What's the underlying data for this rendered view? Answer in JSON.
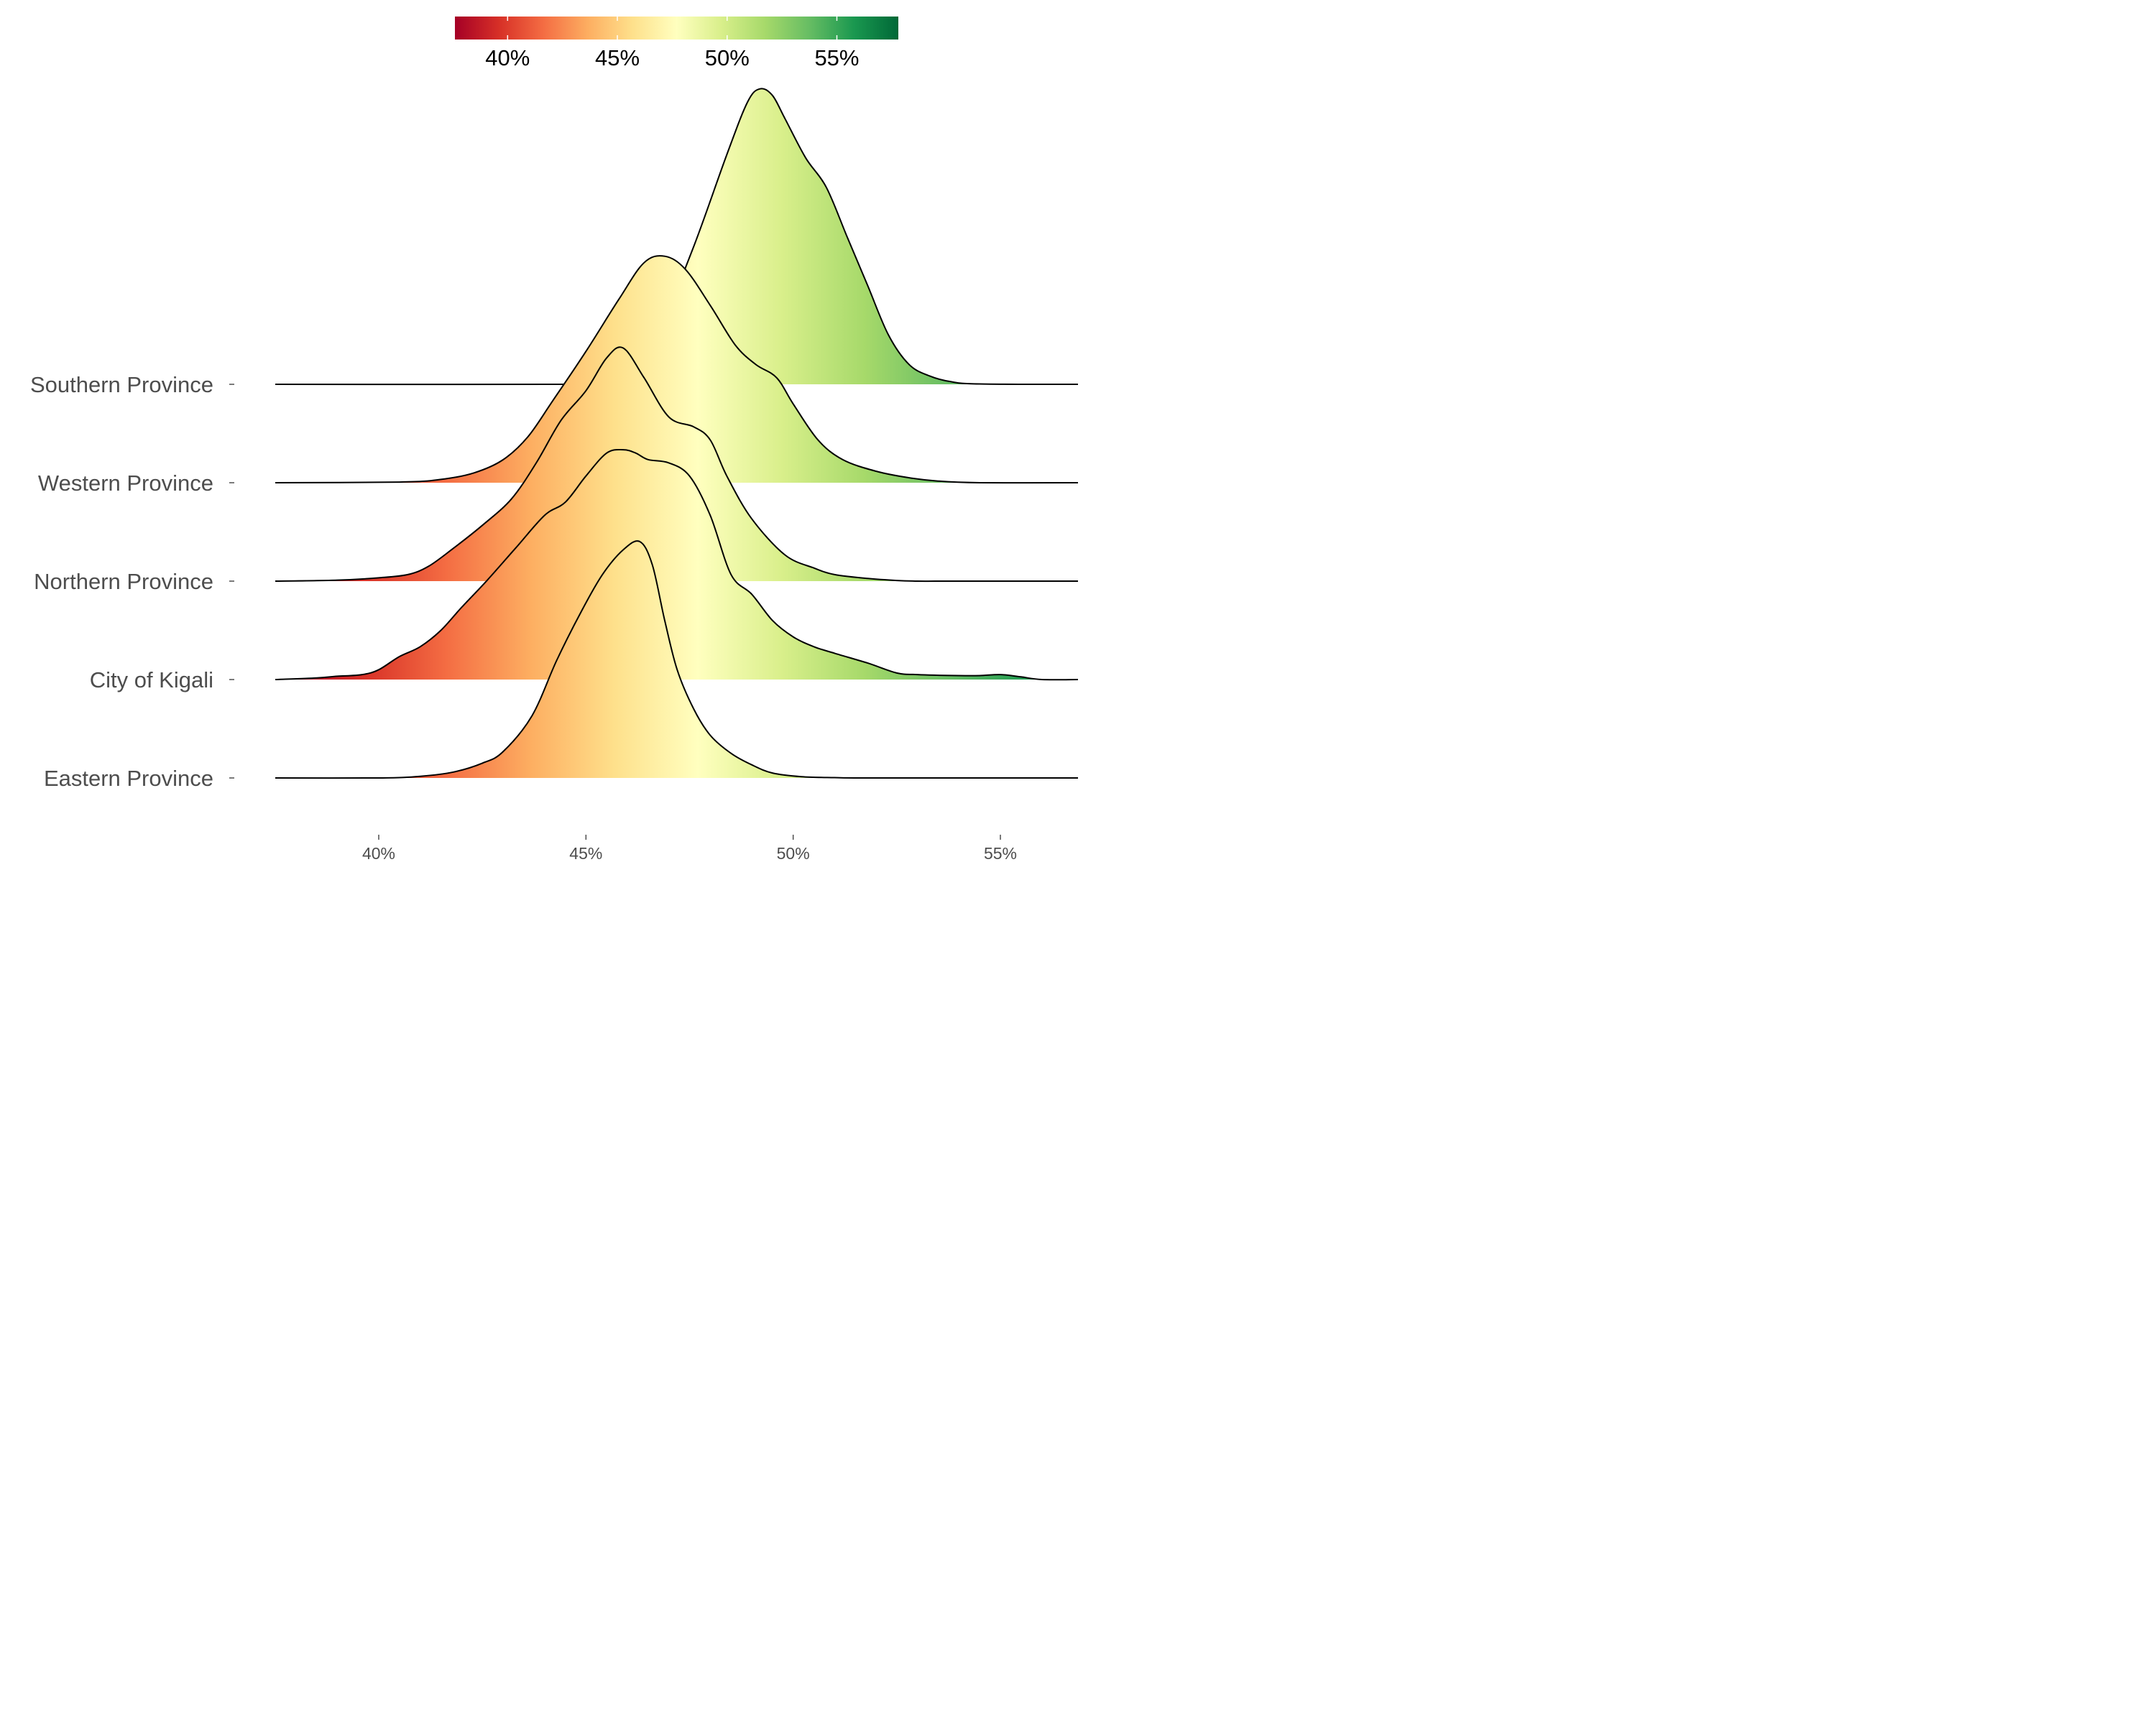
{
  "chart_data": {
    "type": "ridgeline",
    "title": "",
    "xlabel": "",
    "ylabel": "",
    "x_ticks": [
      40,
      45,
      50,
      55
    ],
    "x_tick_labels": [
      "40%",
      "45%",
      "50%",
      "55%"
    ],
    "xlim": [
      37.5,
      57.0
    ],
    "y_categories": [
      "Southern Province",
      "Western Province",
      "Northern Province",
      "City of Kigali",
      "Eastern Province"
    ],
    "fill_mode": "gradient-by-x",
    "grid": false,
    "colorbar": {
      "position": "top",
      "range": [
        37.6,
        57.8
      ],
      "ticks": [
        40,
        45,
        50,
        55
      ],
      "tick_labels": [
        "40%",
        "45%",
        "50%",
        "55%"
      ],
      "palette": [
        "#a50026",
        "#d73027",
        "#f46d43",
        "#fdae61",
        "#fee08b",
        "#ffffbf",
        "#d9ef8b",
        "#a6d96a",
        "#66bd63",
        "#1a9850",
        "#006837"
      ]
    },
    "series": [
      {
        "name": "Eastern Province",
        "x": [
          37.5,
          40.0,
          41.0,
          41.8,
          42.5,
          43.0,
          43.7,
          44.3,
          44.9,
          45.4,
          45.9,
          46.3,
          46.6,
          46.9,
          47.2,
          47.6,
          48.0,
          48.5,
          49.0,
          49.5,
          50.2,
          51.0,
          52.0,
          57.0
        ],
        "y": [
          0.0,
          0.0,
          0.05,
          0.18,
          0.45,
          0.8,
          1.9,
          3.6,
          5.1,
          6.2,
          6.95,
          7.2,
          6.5,
          4.8,
          3.3,
          2.1,
          1.3,
          0.75,
          0.4,
          0.15,
          0.04,
          0.01,
          0.0,
          0.0
        ]
      },
      {
        "name": "City of Kigali",
        "x": [
          37.5,
          38.5,
          39.0,
          39.6,
          40.0,
          40.5,
          41.0,
          41.5,
          42.0,
          42.6,
          43.3,
          44.0,
          44.5,
          45.0,
          45.5,
          45.9,
          46.2,
          46.5,
          47.0,
          47.5,
          48.0,
          48.5,
          49.0,
          49.5,
          50.0,
          50.5,
          51.0,
          51.8,
          52.5,
          53.0,
          54.0,
          54.5,
          55.0,
          55.5,
          56.0,
          57.0
        ],
        "y": [
          0.0,
          0.05,
          0.1,
          0.15,
          0.3,
          0.7,
          1.0,
          1.5,
          2.2,
          3.0,
          4.0,
          5.0,
          5.4,
          6.2,
          6.9,
          7.0,
          6.9,
          6.7,
          6.6,
          6.2,
          5.0,
          3.2,
          2.6,
          1.8,
          1.3,
          1.0,
          0.8,
          0.5,
          0.2,
          0.15,
          0.12,
          0.12,
          0.15,
          0.08,
          0.0,
          0.0
        ]
      },
      {
        "name": "Northern Province",
        "x": [
          37.5,
          39.0,
          40.0,
          40.7,
          41.2,
          41.8,
          42.5,
          43.2,
          43.8,
          44.4,
          45.0,
          45.5,
          45.9,
          46.4,
          47.0,
          47.6,
          48.0,
          48.4,
          49.0,
          49.8,
          50.5,
          51.0,
          51.8,
          52.5,
          53.0,
          54.0,
          57.0
        ],
        "y": [
          0.0,
          0.03,
          0.1,
          0.2,
          0.45,
          1.0,
          1.7,
          2.5,
          3.6,
          4.9,
          5.8,
          6.8,
          7.1,
          6.2,
          5.0,
          4.7,
          4.3,
          3.2,
          1.9,
          0.8,
          0.4,
          0.2,
          0.08,
          0.02,
          0.0,
          0.0,
          0.0
        ]
      },
      {
        "name": "Western Province",
        "x": [
          37.5,
          40.5,
          41.5,
          42.3,
          43.0,
          43.6,
          44.2,
          45.0,
          45.8,
          46.4,
          46.9,
          47.4,
          48.0,
          48.6,
          49.1,
          49.6,
          50.0,
          50.6,
          51.2,
          52.0,
          52.8,
          53.5,
          54.5,
          57.0
        ],
        "y": [
          0.0,
          0.02,
          0.1,
          0.3,
          0.7,
          1.4,
          2.5,
          4.0,
          5.6,
          6.7,
          6.9,
          6.5,
          5.4,
          4.2,
          3.6,
          3.2,
          2.4,
          1.3,
          0.7,
          0.35,
          0.15,
          0.05,
          0.0,
          0.0
        ]
      },
      {
        "name": "Southern Province",
        "x": [
          37.5,
          44.5,
          45.2,
          46.0,
          46.8,
          47.6,
          48.4,
          48.9,
          49.2,
          49.5,
          49.8,
          50.3,
          50.8,
          51.3,
          51.8,
          52.3,
          52.8,
          53.3,
          53.8,
          54.5,
          57.0
        ],
        "y": [
          0.0,
          0.0,
          0.05,
          0.4,
          1.8,
          4.2,
          7.0,
          8.6,
          9.0,
          8.8,
          8.1,
          6.9,
          6.0,
          4.5,
          3.0,
          1.5,
          0.6,
          0.25,
          0.08,
          0.01,
          0.0
        ]
      }
    ]
  }
}
